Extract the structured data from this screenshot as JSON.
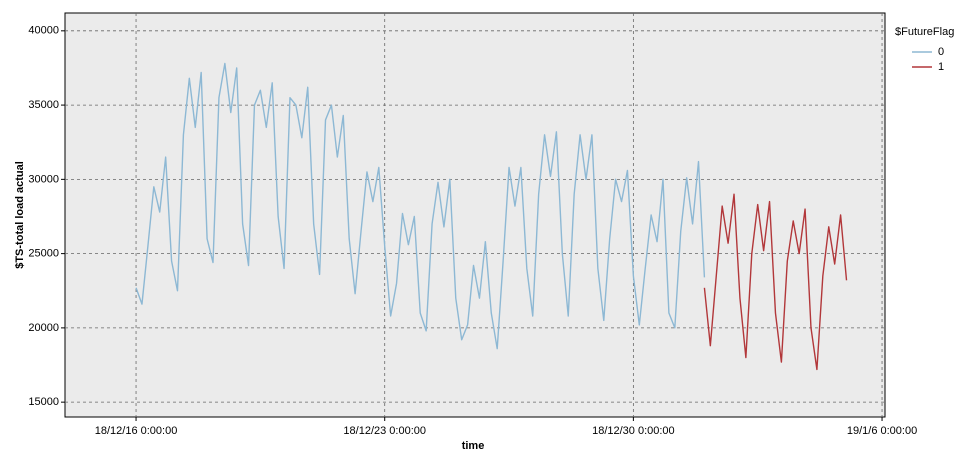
{
  "chart_data": {
    "type": "line",
    "y_label": "$TS-total load actual",
    "x_label": "time",
    "legend_title": "$FutureFlag",
    "legend_position": "right",
    "grid": true,
    "ylim": [
      14000,
      41200
    ],
    "yticks": [
      15000,
      20000,
      25000,
      30000,
      35000,
      40000
    ],
    "xlim": [
      "2018-12-14 00:00",
      "2019-01-06 02:00"
    ],
    "xticks": [
      {
        "value": "2018-12-16 00:00",
        "label": "18/12/16 0:00:00"
      },
      {
        "value": "2018-12-23 00:00",
        "label": "18/12/23 0:00:00"
      },
      {
        "value": "2018-12-30 00:00",
        "label": "18/12/30 0:00:00"
      },
      {
        "value": "2019-01-06 00:00",
        "label": "19/1/6 0:00:00"
      }
    ],
    "x": [
      "2018-12-16 00:00",
      "2018-12-16 04:00",
      "2018-12-16 08:00",
      "2018-12-16 12:00",
      "2018-12-16 16:00",
      "2018-12-16 20:00",
      "2018-12-17 00:00",
      "2018-12-17 04:00",
      "2018-12-17 08:00",
      "2018-12-17 12:00",
      "2018-12-17 16:00",
      "2018-12-17 20:00",
      "2018-12-18 00:00",
      "2018-12-18 04:00",
      "2018-12-18 08:00",
      "2018-12-18 12:00",
      "2018-12-18 16:00",
      "2018-12-18 20:00",
      "2018-12-19 00:00",
      "2018-12-19 04:00",
      "2018-12-19 08:00",
      "2018-12-19 12:00",
      "2018-12-19 16:00",
      "2018-12-19 20:00",
      "2018-12-20 00:00",
      "2018-12-20 04:00",
      "2018-12-20 08:00",
      "2018-12-20 12:00",
      "2018-12-20 16:00",
      "2018-12-20 20:00",
      "2018-12-21 00:00",
      "2018-12-21 04:00",
      "2018-12-21 08:00",
      "2018-12-21 12:00",
      "2018-12-21 16:00",
      "2018-12-21 20:00",
      "2018-12-22 00:00",
      "2018-12-22 04:00",
      "2018-12-22 08:00",
      "2018-12-22 12:00",
      "2018-12-22 16:00",
      "2018-12-22 20:00",
      "2018-12-23 00:00",
      "2018-12-23 04:00",
      "2018-12-23 08:00",
      "2018-12-23 12:00",
      "2018-12-23 16:00",
      "2018-12-23 20:00",
      "2018-12-24 00:00",
      "2018-12-24 04:00",
      "2018-12-24 08:00",
      "2018-12-24 12:00",
      "2018-12-24 16:00",
      "2018-12-24 20:00",
      "2018-12-25 00:00",
      "2018-12-25 04:00",
      "2018-12-25 08:00",
      "2018-12-25 12:00",
      "2018-12-25 16:00",
      "2018-12-25 20:00",
      "2018-12-26 00:00",
      "2018-12-26 04:00",
      "2018-12-26 08:00",
      "2018-12-26 12:00",
      "2018-12-26 16:00",
      "2018-12-26 20:00",
      "2018-12-27 00:00",
      "2018-12-27 04:00",
      "2018-12-27 08:00",
      "2018-12-27 12:00",
      "2018-12-27 16:00",
      "2018-12-27 20:00",
      "2018-12-28 00:00",
      "2018-12-28 04:00",
      "2018-12-28 08:00",
      "2018-12-28 12:00",
      "2018-12-28 16:00",
      "2018-12-28 20:00",
      "2018-12-29 00:00",
      "2018-12-29 04:00",
      "2018-12-29 08:00",
      "2018-12-29 12:00",
      "2018-12-29 16:00",
      "2018-12-29 20:00",
      "2018-12-30 00:00",
      "2018-12-30 04:00",
      "2018-12-30 08:00",
      "2018-12-30 12:00",
      "2018-12-30 16:00",
      "2018-12-30 20:00",
      "2018-12-31 00:00",
      "2018-12-31 04:00",
      "2018-12-31 08:00",
      "2018-12-31 12:00",
      "2018-12-31 16:00",
      "2018-12-31 20:00",
      "2019-01-01 00:00",
      "2019-01-01 04:00",
      "2019-01-01 08:00",
      "2019-01-01 12:00",
      "2019-01-01 16:00",
      "2019-01-01 20:00",
      "2019-01-02 00:00",
      "2019-01-02 04:00",
      "2019-01-02 08:00",
      "2019-01-02 12:00",
      "2019-01-02 16:00",
      "2019-01-02 20:00",
      "2019-01-03 00:00",
      "2019-01-03 04:00",
      "2019-01-03 08:00",
      "2019-01-03 12:00",
      "2019-01-03 16:00",
      "2019-01-03 20:00",
      "2019-01-04 00:00",
      "2019-01-04 04:00",
      "2019-01-04 08:00",
      "2019-01-04 12:00",
      "2019-01-04 16:00",
      "2019-01-04 20:00",
      "2019-01-05 00:00"
    ],
    "series": [
      {
        "name": "0",
        "color": "#8db8d4",
        "values": [
          22700,
          21600,
          25500,
          29500,
          27800,
          31500,
          24500,
          22500,
          33000,
          36800,
          33500,
          37200,
          26000,
          24400,
          35500,
          37800,
          34500,
          37500,
          27000,
          24200,
          35000,
          36000,
          33500,
          36500,
          27500,
          24000,
          35500,
          35000,
          32800,
          36200,
          27000,
          23600,
          34000,
          35000,
          31500,
          34300,
          26000,
          22300,
          26500,
          30500,
          28500,
          30800,
          25500,
          20800,
          23000,
          27700,
          25600,
          27500,
          21000,
          19800,
          27000,
          29800,
          26800,
          30000,
          22000,
          19200,
          20200,
          24200,
          22000,
          25800,
          21000,
          18600,
          24500,
          30800,
          28200,
          30800,
          24000,
          20800,
          29000,
          33000,
          30200,
          33200,
          25000,
          20800,
          29000,
          33000,
          30000,
          33000,
          24000,
          20500,
          26000,
          30000,
          28500,
          30600,
          23500,
          20200,
          24000,
          27600,
          25800,
          30000,
          21000,
          20000,
          26500,
          30100,
          27000,
          31200,
          23400,
          null,
          null,
          null,
          null,
          null,
          null,
          null,
          null,
          null,
          null,
          null,
          null,
          null,
          null,
          null,
          null,
          null,
          null,
          null,
          null,
          null,
          null,
          null,
          null
        ]
      },
      {
        "name": "1",
        "color": "#b2373a",
        "values": [
          null,
          null,
          null,
          null,
          null,
          null,
          null,
          null,
          null,
          null,
          null,
          null,
          null,
          null,
          null,
          null,
          null,
          null,
          null,
          null,
          null,
          null,
          null,
          null,
          null,
          null,
          null,
          null,
          null,
          null,
          null,
          null,
          null,
          null,
          null,
          null,
          null,
          null,
          null,
          null,
          null,
          null,
          null,
          null,
          null,
          null,
          null,
          null,
          null,
          null,
          null,
          null,
          null,
          null,
          null,
          null,
          null,
          null,
          null,
          null,
          null,
          null,
          null,
          null,
          null,
          null,
          null,
          null,
          null,
          null,
          null,
          null,
          null,
          null,
          null,
          null,
          null,
          null,
          null,
          null,
          null,
          null,
          null,
          null,
          null,
          null,
          null,
          null,
          null,
          null,
          null,
          null,
          null,
          null,
          null,
          null,
          22700,
          18800,
          23500,
          28200,
          25700,
          29000,
          22000,
          18000,
          25000,
          28300,
          25200,
          28500,
          21000,
          17700,
          24500,
          27200,
          25000,
          28000,
          20000,
          17200,
          23500,
          26800,
          24300,
          27600,
          23200
        ]
      }
    ]
  }
}
